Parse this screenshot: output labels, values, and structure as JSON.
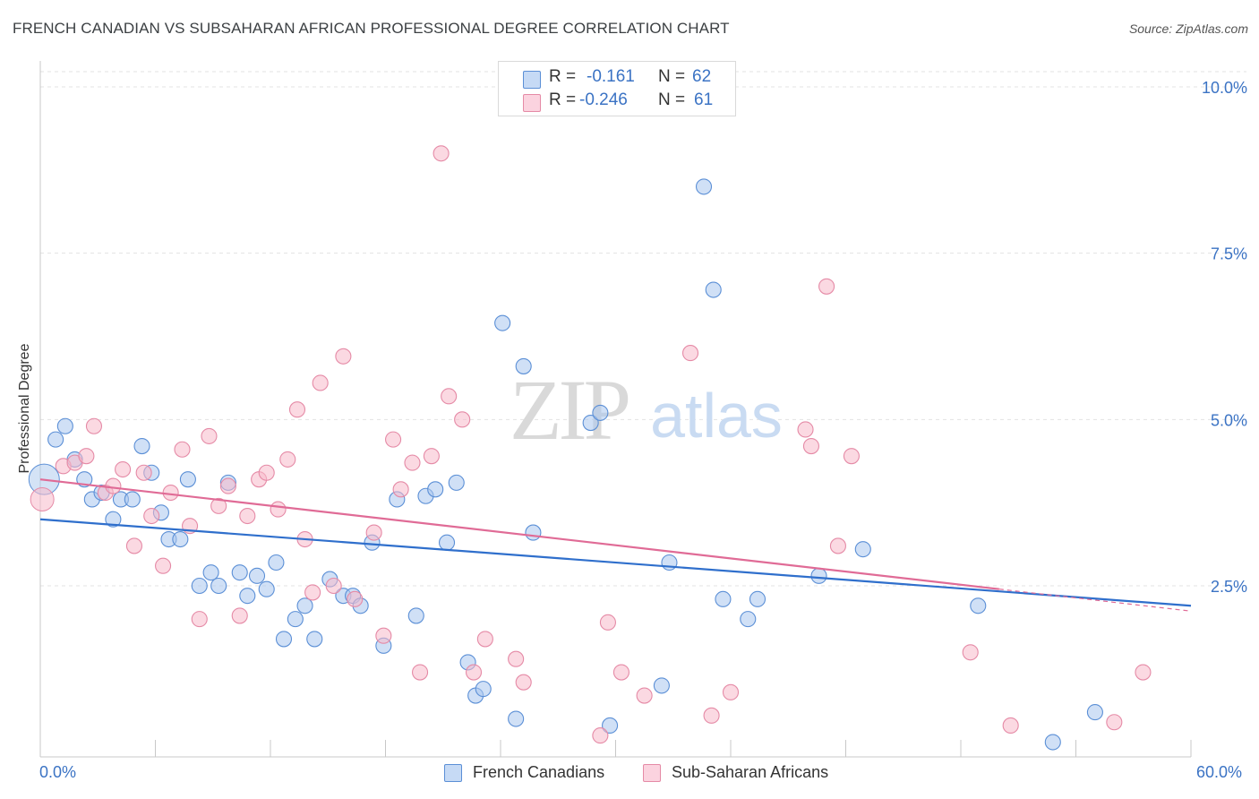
{
  "title": "FRENCH CANADIAN VS SUBSAHARAN AFRICAN PROFESSIONAL DEGREE CORRELATION CHART",
  "source": "Source: ZipAtlas.com",
  "watermark": {
    "zip": "ZIP",
    "atlas": "atlas"
  },
  "colors": {
    "blue_fill": "#a9c7ee",
    "blue_stroke": "#5b8fd6",
    "blue_line": "#2f6fcc",
    "pink_fill": "#f7b9cb",
    "pink_stroke": "#e58aa6",
    "pink_line": "#e06b96",
    "axis_text": "#3b73c4",
    "grid": "#e3e3e3"
  },
  "legend_top": [
    {
      "swatch": "blue",
      "r_label": "R =",
      "r_value": "-0.161",
      "n_label": "N =",
      "n_value": "62"
    },
    {
      "swatch": "pink",
      "r_label": "R =",
      "r_value": "-0.246",
      "n_label": "N =",
      "n_value": "61"
    }
  ],
  "legend_bottom": [
    {
      "swatch": "blue",
      "label": "French Canadians"
    },
    {
      "swatch": "pink",
      "label": "Sub-Saharan Africans"
    }
  ],
  "chart_data": {
    "type": "scatter",
    "title": "FRENCH CANADIAN VS SUBSAHARAN AFRICAN PROFESSIONAL DEGREE CORRELATION CHART",
    "xlabel": "",
    "ylabel": "Professional Degree",
    "xlim": [
      0,
      60
    ],
    "ylim": [
      0,
      10.5
    ],
    "x_tick_labels": [
      "0.0%",
      "60.0%"
    ],
    "y_ticks": [
      2.5,
      5.0,
      7.5,
      10.0
    ],
    "y_tick_labels": [
      "2.5%",
      "5.0%",
      "7.5%",
      "10.0%"
    ],
    "grid": true,
    "legend_position": "top-center",
    "series": [
      {
        "name": "French Canadians",
        "color": "blue",
        "trend": {
          "x": [
            0,
            60
          ],
          "y": [
            3.5,
            2.2
          ]
        },
        "points": [
          [
            0.8,
            4.7
          ],
          [
            1.3,
            4.9
          ],
          [
            1.8,
            4.4
          ],
          [
            2.3,
            4.1
          ],
          [
            2.7,
            3.8
          ],
          [
            3.2,
            3.9
          ],
          [
            3.8,
            3.5
          ],
          [
            4.2,
            3.8
          ],
          [
            4.8,
            3.8
          ],
          [
            5.3,
            4.6
          ],
          [
            5.8,
            4.2
          ],
          [
            6.3,
            3.6
          ],
          [
            6.7,
            3.2
          ],
          [
            7.3,
            3.2
          ],
          [
            7.7,
            4.1
          ],
          [
            8.3,
            2.5
          ],
          [
            8.9,
            2.7
          ],
          [
            9.3,
            2.5
          ],
          [
            9.8,
            4.05
          ],
          [
            10.4,
            2.7
          ],
          [
            10.8,
            2.35
          ],
          [
            11.3,
            2.65
          ],
          [
            11.8,
            2.45
          ],
          [
            12.3,
            2.85
          ],
          [
            12.7,
            1.7
          ],
          [
            13.3,
            2.0
          ],
          [
            13.8,
            2.2
          ],
          [
            14.3,
            1.7
          ],
          [
            15.1,
            2.6
          ],
          [
            15.8,
            2.35
          ],
          [
            16.3,
            2.35
          ],
          [
            16.7,
            2.2
          ],
          [
            17.3,
            3.15
          ],
          [
            17.9,
            1.6
          ],
          [
            18.6,
            3.8
          ],
          [
            19.6,
            2.05
          ],
          [
            20.1,
            3.85
          ],
          [
            20.6,
            3.95
          ],
          [
            21.2,
            3.15
          ],
          [
            21.7,
            4.05
          ],
          [
            22.3,
            1.35
          ],
          [
            22.7,
            0.85
          ],
          [
            23.1,
            0.95
          ],
          [
            24.1,
            6.45
          ],
          [
            24.8,
            0.5
          ],
          [
            25.2,
            5.8
          ],
          [
            25.7,
            3.3
          ],
          [
            28.7,
            4.95
          ],
          [
            29.2,
            5.1
          ],
          [
            29.7,
            0.4
          ],
          [
            32.4,
            1.0
          ],
          [
            32.8,
            2.85
          ],
          [
            34.6,
            8.5
          ],
          [
            35.1,
            6.95
          ],
          [
            35.6,
            2.3
          ],
          [
            36.9,
            2.0
          ],
          [
            37.4,
            2.3
          ],
          [
            40.6,
            2.65
          ],
          [
            42.9,
            3.05
          ],
          [
            48.9,
            2.2
          ],
          [
            52.8,
            0.15
          ],
          [
            55.0,
            0.6
          ]
        ]
      },
      {
        "name": "Sub-Saharan Africans",
        "color": "pink",
        "trend": {
          "x": [
            0,
            50
          ],
          "y": [
            4.1,
            2.45
          ]
        },
        "trend_dashed": {
          "x": [
            50,
            60
          ],
          "y": [
            2.45,
            2.12
          ]
        },
        "points": [
          [
            1.2,
            4.3
          ],
          [
            1.8,
            4.35
          ],
          [
            2.4,
            4.45
          ],
          [
            2.8,
            4.9
          ],
          [
            3.4,
            3.9
          ],
          [
            3.8,
            4.0
          ],
          [
            4.3,
            4.25
          ],
          [
            4.9,
            3.1
          ],
          [
            5.4,
            4.2
          ],
          [
            5.8,
            3.55
          ],
          [
            6.4,
            2.8
          ],
          [
            6.8,
            3.9
          ],
          [
            7.4,
            4.55
          ],
          [
            7.8,
            3.4
          ],
          [
            8.3,
            2.0
          ],
          [
            8.8,
            4.75
          ],
          [
            9.3,
            3.7
          ],
          [
            9.8,
            4.0
          ],
          [
            10.4,
            2.05
          ],
          [
            10.8,
            3.55
          ],
          [
            11.4,
            4.1
          ],
          [
            11.8,
            4.2
          ],
          [
            12.4,
            3.65
          ],
          [
            12.9,
            4.4
          ],
          [
            13.4,
            5.15
          ],
          [
            13.8,
            3.2
          ],
          [
            14.2,
            2.4
          ],
          [
            14.6,
            5.55
          ],
          [
            15.3,
            2.5
          ],
          [
            15.8,
            5.95
          ],
          [
            16.4,
            2.3
          ],
          [
            17.4,
            3.3
          ],
          [
            17.9,
            1.75
          ],
          [
            18.4,
            4.7
          ],
          [
            18.8,
            3.95
          ],
          [
            19.4,
            4.35
          ],
          [
            19.8,
            1.2
          ],
          [
            20.4,
            4.45
          ],
          [
            20.9,
            9.0
          ],
          [
            21.3,
            5.35
          ],
          [
            22.0,
            5.0
          ],
          [
            22.6,
            1.2
          ],
          [
            23.2,
            1.7
          ],
          [
            24.8,
            1.4
          ],
          [
            25.2,
            1.05
          ],
          [
            29.2,
            0.25
          ],
          [
            29.6,
            1.95
          ],
          [
            30.3,
            1.2
          ],
          [
            31.5,
            0.85
          ],
          [
            33.9,
            6.0
          ],
          [
            35.0,
            0.55
          ],
          [
            36.0,
            0.9
          ],
          [
            39.9,
            4.85
          ],
          [
            40.2,
            4.6
          ],
          [
            41.0,
            7.0
          ],
          [
            41.6,
            3.1
          ],
          [
            42.3,
            4.45
          ],
          [
            48.5,
            1.5
          ],
          [
            50.6,
            0.4
          ],
          [
            56.0,
            0.45
          ],
          [
            57.5,
            1.2
          ]
        ]
      }
    ]
  }
}
